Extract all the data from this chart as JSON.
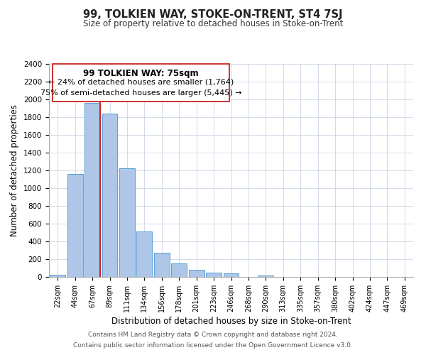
{
  "title": "99, TOLKIEN WAY, STOKE-ON-TRENT, ST4 7SJ",
  "subtitle": "Size of property relative to detached houses in Stoke-on-Trent",
  "xlabel": "Distribution of detached houses by size in Stoke-on-Trent",
  "ylabel": "Number of detached properties",
  "bar_labels": [
    "22sqm",
    "44sqm",
    "67sqm",
    "89sqm",
    "111sqm",
    "134sqm",
    "156sqm",
    "178sqm",
    "201sqm",
    "223sqm",
    "246sqm",
    "268sqm",
    "290sqm",
    "313sqm",
    "335sqm",
    "357sqm",
    "380sqm",
    "402sqm",
    "424sqm",
    "447sqm",
    "469sqm"
  ],
  "bar_values": [
    25,
    1160,
    1960,
    1840,
    1225,
    510,
    275,
    150,
    80,
    50,
    40,
    0,
    15,
    0,
    0,
    0,
    0,
    0,
    0,
    0,
    0
  ],
  "bar_color": "#aec6e8",
  "bar_edge_color": "#5a9fd4",
  "vline_color": "#cc2222",
  "ylim": [
    0,
    2400
  ],
  "yticks": [
    0,
    200,
    400,
    600,
    800,
    1000,
    1200,
    1400,
    1600,
    1800,
    2000,
    2200,
    2400
  ],
  "annotation_title": "99 TOLKIEN WAY: 75sqm",
  "annotation_line1": "← 24% of detached houses are smaller (1,764)",
  "annotation_line2": "75% of semi-detached houses are larger (5,445) →",
  "footer_line1": "Contains HM Land Registry data © Crown copyright and database right 2024.",
  "footer_line2": "Contains public sector information licensed under the Open Government Licence v3.0.",
  "bg_color": "#ffffff",
  "grid_color": "#ccd5e5"
}
